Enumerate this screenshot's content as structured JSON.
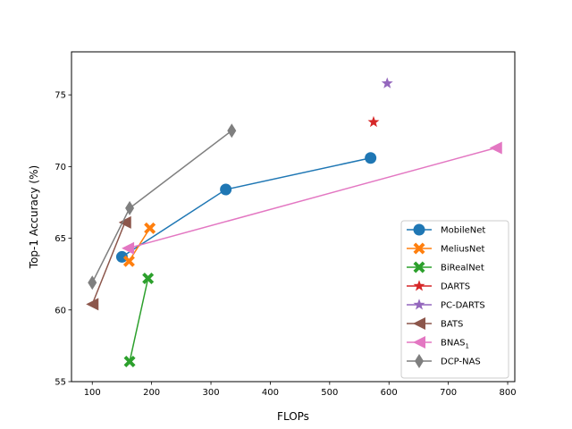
{
  "chart_data": {
    "type": "line",
    "title": "",
    "xlabel": "FLOPs",
    "ylabel": "Top-1 Accuracy (%)",
    "xlim": [
      65,
      812
    ],
    "ylim": [
      55,
      78
    ],
    "xticks": [
      100,
      200,
      300,
      400,
      500,
      600,
      700,
      800
    ],
    "yticks": [
      55,
      60,
      65,
      70,
      75
    ],
    "grid": false,
    "legend_position": "lower-right",
    "series": [
      {
        "name": "MobileNet",
        "sub": "",
        "color": "#1f77b4",
        "marker": "circle",
        "points": [
          [
            150,
            63.7
          ],
          [
            325,
            68.4
          ],
          [
            569,
            70.6
          ]
        ]
      },
      {
        "name": "MeliusNet",
        "sub": "",
        "color": "#ff7f0e",
        "marker": "x-filled",
        "points": [
          [
            162,
            63.4
          ],
          [
            197,
            65.7
          ]
        ]
      },
      {
        "name": "BiRealNet",
        "sub": "",
        "color": "#2ca02c",
        "marker": "x-filled",
        "points": [
          [
            163,
            56.4
          ],
          [
            194,
            62.2
          ]
        ]
      },
      {
        "name": "DARTS",
        "sub": "",
        "color": "#d62728",
        "marker": "star",
        "points": [
          [
            574,
            73.1
          ]
        ]
      },
      {
        "name": "PC-DARTS",
        "sub": "",
        "color": "#9467bd",
        "marker": "star",
        "points": [
          [
            597,
            75.8
          ]
        ]
      },
      {
        "name": "BATS",
        "sub": "",
        "color": "#8c564b",
        "marker": "triangle-left",
        "points": [
          [
            100,
            60.4
          ],
          [
            155,
            66.1
          ]
        ]
      },
      {
        "name": "BNAS",
        "sub": "1",
        "color": "#e377c2",
        "marker": "triangle-left",
        "points": [
          [
            160,
            64.3
          ],
          [
            780,
            71.3
          ]
        ]
      },
      {
        "name": "DCP-NAS",
        "sub": "",
        "color": "#7f7f7f",
        "marker": "thin-diamond",
        "points": [
          [
            100,
            61.9
          ],
          [
            163,
            67.1
          ],
          [
            335,
            72.5
          ]
        ]
      }
    ]
  }
}
